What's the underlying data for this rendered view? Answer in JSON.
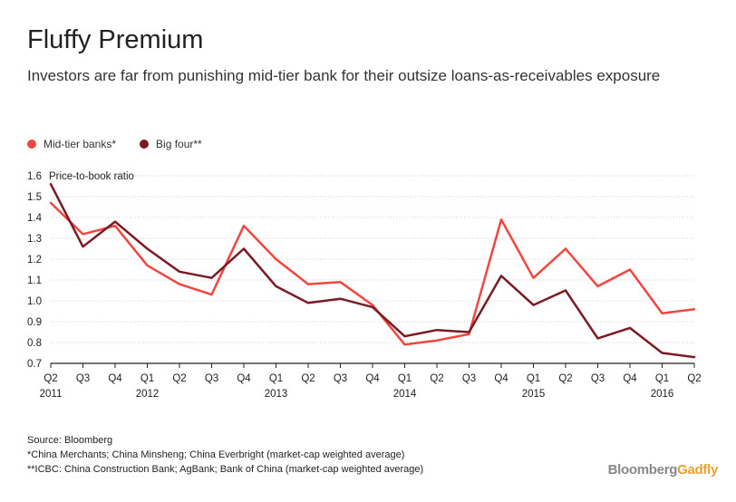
{
  "title": "Fluffy Premium",
  "subtitle": "Investors are far from punishing mid-tier bank for their outsize loans-as-receivables exposure",
  "legend": {
    "mid": "Mid-tier banks*",
    "big": "Big four**"
  },
  "colors": {
    "mid": "#f0463f",
    "big": "#7a1a24",
    "grid": "#d0d0d0",
    "axis": "#222222"
  },
  "source": {
    "line1": "Source: Bloomberg",
    "line2": "*China Merchants; China Minsheng; China Everbright (market-cap weighted average)",
    "line3": "**ICBC: China Construction Bank; AgBank; Bank of China (market-cap weighted average)"
  },
  "brand": {
    "part1": "Bloomberg",
    "part2": "Gadfly"
  },
  "chart_data": {
    "type": "line",
    "title": "Fluffy Premium",
    "xlabel": "",
    "ylabel": "Price-to-book ratio",
    "ylim": [
      0.7,
      1.6
    ],
    "yticks": [
      0.7,
      0.8,
      0.9,
      1.0,
      1.1,
      1.2,
      1.3,
      1.4,
      1.5,
      1.6
    ],
    "ytick_labels": [
      "0.7",
      "0.8",
      "0.9",
      "1.0",
      "1.1",
      "1.2",
      "1.3",
      "1.4",
      "1.5",
      "1.6"
    ],
    "categories": [
      "Q2",
      "Q3",
      "Q4",
      "Q1",
      "Q2",
      "Q3",
      "Q4",
      "Q1",
      "Q2",
      "Q3",
      "Q4",
      "Q1",
      "Q2",
      "Q3",
      "Q4",
      "Q1",
      "Q2",
      "Q3",
      "Q4",
      "Q1",
      "Q2"
    ],
    "year_labels": [
      {
        "index": 0,
        "label": "2011"
      },
      {
        "index": 3,
        "label": "2012"
      },
      {
        "index": 7,
        "label": "2013"
      },
      {
        "index": 11,
        "label": "2014"
      },
      {
        "index": 15,
        "label": "2015"
      },
      {
        "index": 19,
        "label": "2016"
      }
    ],
    "series": [
      {
        "name": "Mid-tier banks*",
        "values": [
          1.47,
          1.32,
          1.36,
          1.17,
          1.08,
          1.03,
          1.36,
          1.2,
          1.08,
          1.09,
          0.98,
          0.79,
          0.81,
          0.84,
          1.39,
          1.11,
          1.25,
          1.07,
          1.15,
          0.94,
          0.96
        ]
      },
      {
        "name": "Big four**",
        "values": [
          1.56,
          1.26,
          1.38,
          1.25,
          1.14,
          1.11,
          1.25,
          1.07,
          0.99,
          1.01,
          0.97,
          0.83,
          0.86,
          0.85,
          1.12,
          0.98,
          1.05,
          0.82,
          0.87,
          0.75,
          0.73
        ]
      }
    ]
  }
}
